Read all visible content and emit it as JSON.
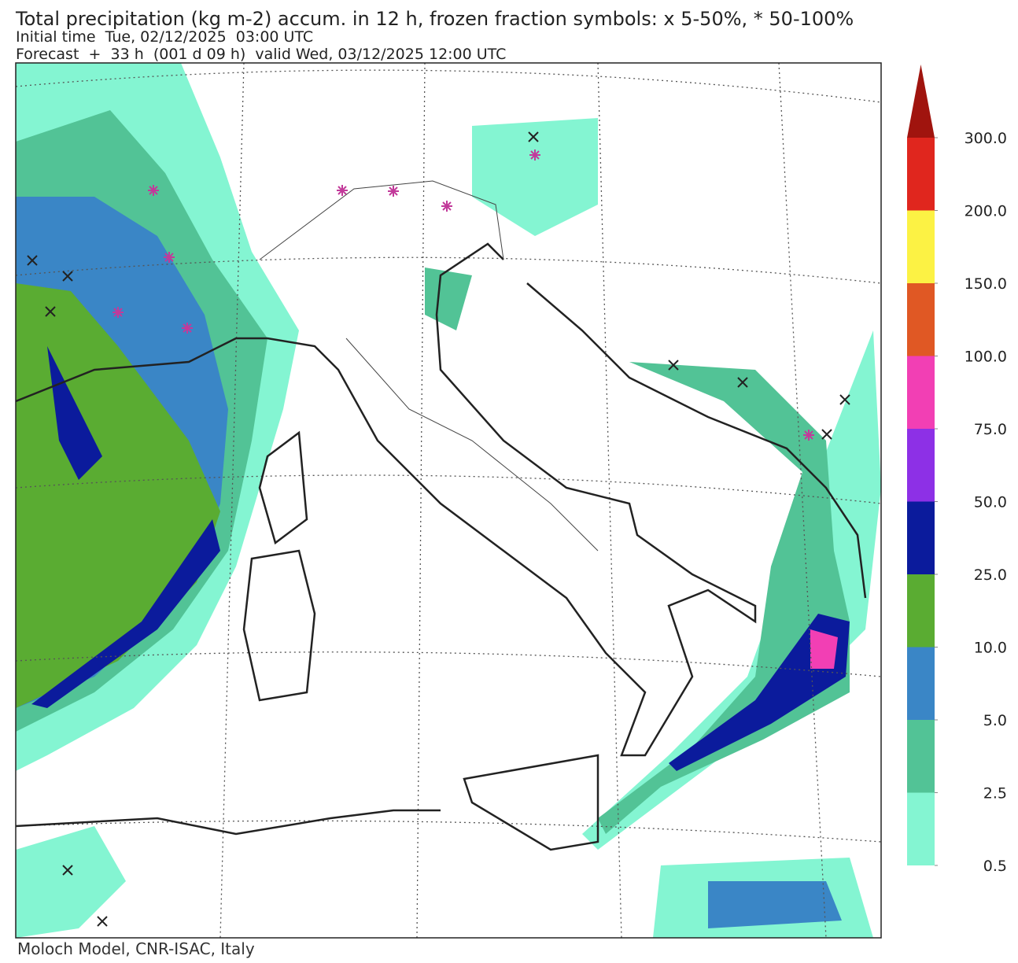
{
  "header": {
    "title": "Total precipitation (kg m-2) accum. in 12 h, frozen fraction symbols: x 5-50%, * 50-100%",
    "initial_time": "Initial time  Tue, 02/12/2025  03:00 UTC",
    "forecast": "Forecast  +  33 h  (001 d 09 h)  valid Wed, 03/12/2025 12:00 UTC"
  },
  "colorbar": {
    "ticks": [
      {
        "value": 0.5,
        "label": "0.5"
      },
      {
        "value": 2.5,
        "label": "2.5"
      },
      {
        "value": 5,
        "label": "5.0"
      },
      {
        "value": 10,
        "label": "10.0"
      },
      {
        "value": 25,
        "label": "25.0"
      },
      {
        "value": 50,
        "label": "50.0"
      },
      {
        "value": 75,
        "label": "75.0"
      },
      {
        "value": 100,
        "label": "100.0"
      },
      {
        "value": 150,
        "label": "150.0"
      },
      {
        "value": 200,
        "label": "200.0"
      },
      {
        "value": 300,
        "label": "300.0"
      }
    ],
    "colors": [
      "#84f5d2",
      "#52c396",
      "#3a86c6",
      "#5aac32",
      "#0b1b9c",
      "#8d30e6",
      "#f23fb4",
      "#e05824",
      "#fcf244",
      "#e0261e"
    ],
    "extend_color": "#a0140e"
  },
  "footer": "Moloch Model, CNR-ISAC, Italy"
}
